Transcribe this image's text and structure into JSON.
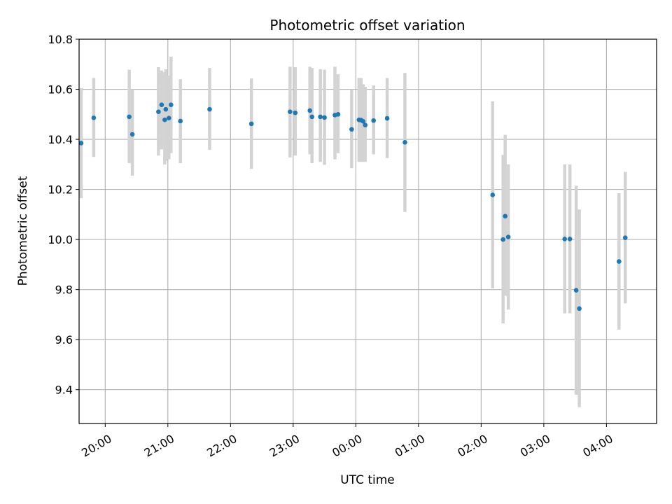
{
  "chart_data": {
    "type": "scatter",
    "title": "Photometric offset variation",
    "xlabel": "UTC time",
    "ylabel": "Photometric offset",
    "x_unit": "UTC clock time",
    "xlim": [
      "19:35",
      "28:48"
    ],
    "ylim": [
      9.265,
      10.8
    ],
    "x_ticks": [
      {
        "pos": "20:00",
        "label": "20:00"
      },
      {
        "pos": "21:00",
        "label": "21:00"
      },
      {
        "pos": "22:00",
        "label": "22:00"
      },
      {
        "pos": "23:00",
        "label": "23:00"
      },
      {
        "pos": "24:00",
        "label": "00:00"
      },
      {
        "pos": "25:00",
        "label": "01:00"
      },
      {
        "pos": "26:00",
        "label": "02:00"
      },
      {
        "pos": "27:00",
        "label": "03:00"
      },
      {
        "pos": "28:00",
        "label": "04:00"
      }
    ],
    "y_ticks": [
      "9.4",
      "9.6",
      "9.8",
      "10.0",
      "10.2",
      "10.4",
      "10.6",
      "10.8"
    ],
    "grid": true,
    "marker_color": "#1f77b4",
    "errorbar_color": "#d3d3d3",
    "points": [
      {
        "t": "19:37",
        "y": 10.385,
        "lo": 10.165,
        "hi": 10.605
      },
      {
        "t": "19:49",
        "y": 10.486,
        "lo": 10.33,
        "hi": 10.645
      },
      {
        "t": "20:23",
        "y": 10.49,
        "lo": 10.305,
        "hi": 10.678
      },
      {
        "t": "20:26",
        "y": 10.42,
        "lo": 10.255,
        "hi": 10.6
      },
      {
        "t": "20:51",
        "y": 10.51,
        "lo": 10.335,
        "hi": 10.688
      },
      {
        "t": "20:54",
        "y": 10.538,
        "lo": 10.36,
        "hi": 10.675
      },
      {
        "t": "20:57",
        "y": 10.478,
        "lo": 10.3,
        "hi": 10.668
      },
      {
        "t": "20:58",
        "y": 10.52,
        "lo": 10.315,
        "hi": 10.68
      },
      {
        "t": "21:01",
        "y": 10.485,
        "lo": 10.32,
        "hi": 10.655
      },
      {
        "t": "21:03",
        "y": 10.538,
        "lo": 10.345,
        "hi": 10.73
      },
      {
        "t": "21:12",
        "y": 10.473,
        "lo": 10.305,
        "hi": 10.64
      },
      {
        "t": "21:40",
        "y": 10.52,
        "lo": 10.358,
        "hi": 10.685
      },
      {
        "t": "22:20",
        "y": 10.462,
        "lo": 10.282,
        "hi": 10.643
      },
      {
        "t": "22:57",
        "y": 10.51,
        "lo": 10.328,
        "hi": 10.69
      },
      {
        "t": "23:02",
        "y": 10.506,
        "lo": 10.335,
        "hi": 10.688
      },
      {
        "t": "23:16",
        "y": 10.515,
        "lo": 10.34,
        "hi": 10.69
      },
      {
        "t": "23:18",
        "y": 10.49,
        "lo": 10.305,
        "hi": 10.685
      },
      {
        "t": "23:26",
        "y": 10.49,
        "lo": 10.31,
        "hi": 10.68
      },
      {
        "t": "23:30",
        "y": 10.487,
        "lo": 10.298,
        "hi": 10.678
      },
      {
        "t": "23:40",
        "y": 10.497,
        "lo": 10.32,
        "hi": 10.69
      },
      {
        "t": "23:43",
        "y": 10.5,
        "lo": 10.345,
        "hi": 10.66
      },
      {
        "t": "23:56",
        "y": 10.44,
        "lo": 10.285,
        "hi": 10.6
      },
      {
        "t": "24:03",
        "y": 10.478,
        "lo": 10.31,
        "hi": 10.645
      },
      {
        "t": "24:05",
        "y": 10.477,
        "lo": 10.31,
        "hi": 10.645
      },
      {
        "t": "24:07",
        "y": 10.472,
        "lo": 10.31,
        "hi": 10.62
      },
      {
        "t": "24:09",
        "y": 10.457,
        "lo": 10.31,
        "hi": 10.61
      },
      {
        "t": "24:17",
        "y": 10.475,
        "lo": 10.34,
        "hi": 10.615
      },
      {
        "t": "24:30",
        "y": 10.484,
        "lo": 10.325,
        "hi": 10.645
      },
      {
        "t": "24:47",
        "y": 10.388,
        "lo": 10.11,
        "hi": 10.665
      },
      {
        "t": "26:11",
        "y": 10.178,
        "lo": 9.805,
        "hi": 10.552
      },
      {
        "t": "26:21",
        "y": 10.0,
        "lo": 9.665,
        "hi": 10.338
      },
      {
        "t": "26:23",
        "y": 10.093,
        "lo": 9.775,
        "hi": 10.418
      },
      {
        "t": "26:26",
        "y": 10.01,
        "lo": 9.72,
        "hi": 10.3
      },
      {
        "t": "27:20",
        "y": 10.002,
        "lo": 9.705,
        "hi": 10.3
      },
      {
        "t": "27:25",
        "y": 10.002,
        "lo": 9.705,
        "hi": 10.3
      },
      {
        "t": "27:31",
        "y": 9.797,
        "lo": 9.38,
        "hi": 10.215
      },
      {
        "t": "27:34",
        "y": 9.724,
        "lo": 9.33,
        "hi": 10.12
      },
      {
        "t": "28:12",
        "y": 9.912,
        "lo": 9.64,
        "hi": 10.185
      },
      {
        "t": "28:18",
        "y": 10.007,
        "lo": 9.745,
        "hi": 10.27
      }
    ]
  }
}
